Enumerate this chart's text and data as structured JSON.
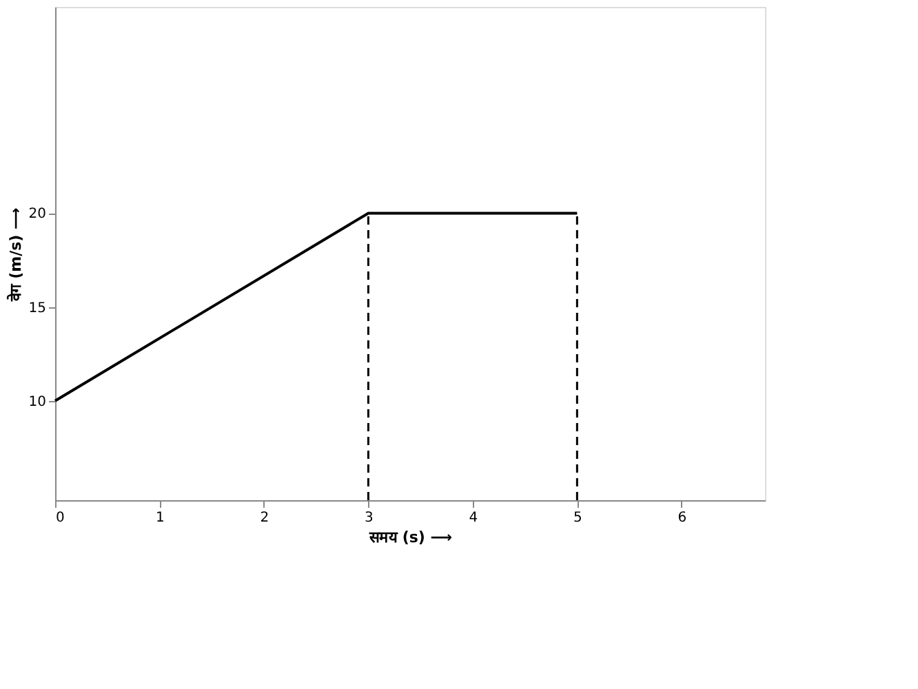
{
  "chart_data": {
    "type": "line",
    "xlabel": "समय (s) ⟶",
    "ylabel": "वेग (m/s) ⟶",
    "x": [
      0,
      3,
      5
    ],
    "series": [
      {
        "color": "#000000",
        "values": [
          10,
          20,
          20
        ]
      }
    ],
    "xlim": [
      0,
      6.8
    ],
    "xticks": [
      0,
      1,
      2,
      3,
      4,
      5,
      6
    ],
    "ylim": [
      4.7,
      31
    ],
    "yticks": [
      10,
      15,
      20
    ],
    "ref_lines": [
      {
        "axis": "x",
        "value": 3,
        "line_style": "dashed"
      },
      {
        "axis": "x",
        "value": 5,
        "line_style": "dashed"
      }
    ],
    "grid": false,
    "marker": "none",
    "line_style": "solid"
  }
}
